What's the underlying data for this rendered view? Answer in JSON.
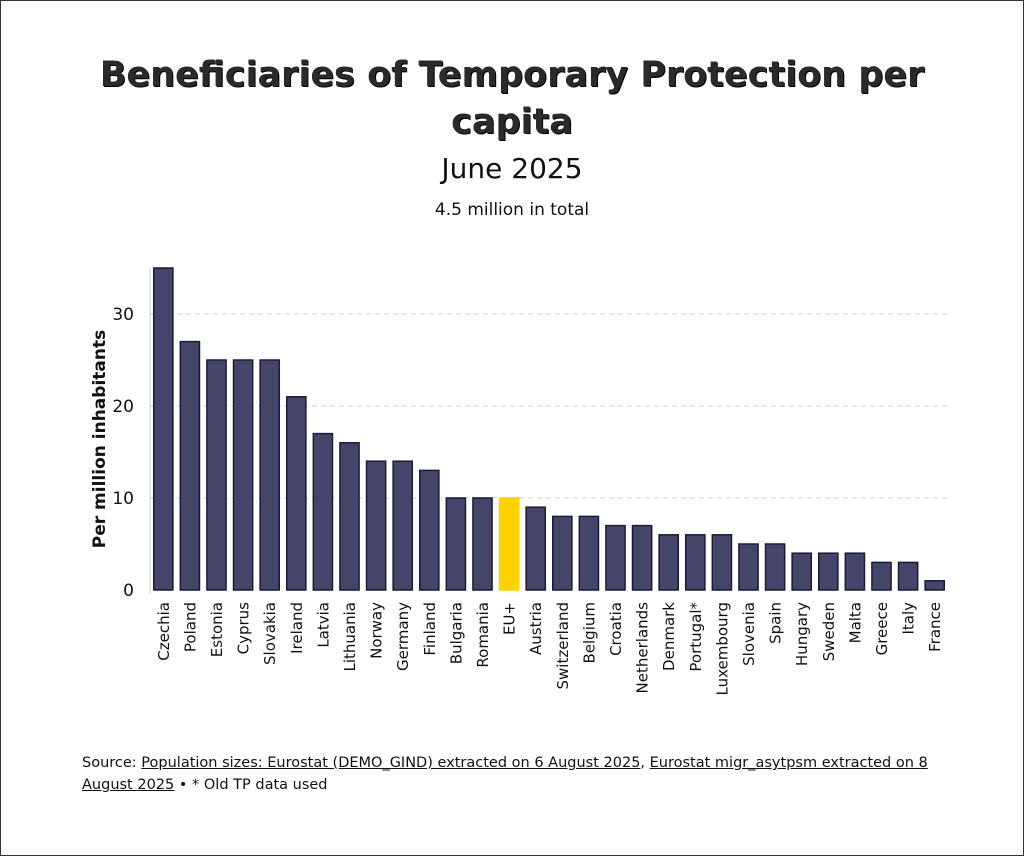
{
  "chart_data": {
    "type": "bar",
    "title": "Beneficiaries of Temporary Protection per capita",
    "subtitle": "June 2025",
    "note": "4.5 million in total",
    "xlabel": "",
    "ylabel": "Per million inhabitants",
    "ylim": [
      0,
      35
    ],
    "yticks": [
      0,
      10,
      20,
      30
    ],
    "grid": true,
    "categories": [
      "Czechia",
      "Poland",
      "Estonia",
      "Cyprus",
      "Slovakia",
      "Ireland",
      "Latvia",
      "Lithuania",
      "Norway",
      "Germany",
      "Finland",
      "Bulgaria",
      "Romania",
      "EU+",
      "Austria",
      "Switzerland",
      "Belgium",
      "Croatia",
      "Netherlands",
      "Denmark",
      "Portugal*",
      "Luxembourg",
      "Slovenia",
      "Spain",
      "Hungary",
      "Sweden",
      "Malta",
      "Greece",
      "Italy",
      "France"
    ],
    "values": [
      35,
      27,
      25,
      25,
      25,
      21,
      17,
      16,
      14,
      14,
      13,
      10,
      10,
      10,
      9,
      8,
      8,
      7,
      7,
      6,
      6,
      6,
      5,
      5,
      4,
      4,
      4,
      3,
      3,
      1
    ],
    "highlight": "EU+",
    "colors": {
      "bar": "#45456a",
      "bar_outline": "#1a1a3a",
      "highlight": "#ffd200",
      "grid": "#dddddd"
    }
  },
  "source": {
    "prefix": "Source: ",
    "link1": "Population sizes: Eurostat (DEMO_GIND) extracted on 6 August 2025",
    "separator": ", ",
    "link2": "Eurostat migr_asytpsm extracted on 8 August 2025",
    "suffix": " • * Old TP data used"
  }
}
